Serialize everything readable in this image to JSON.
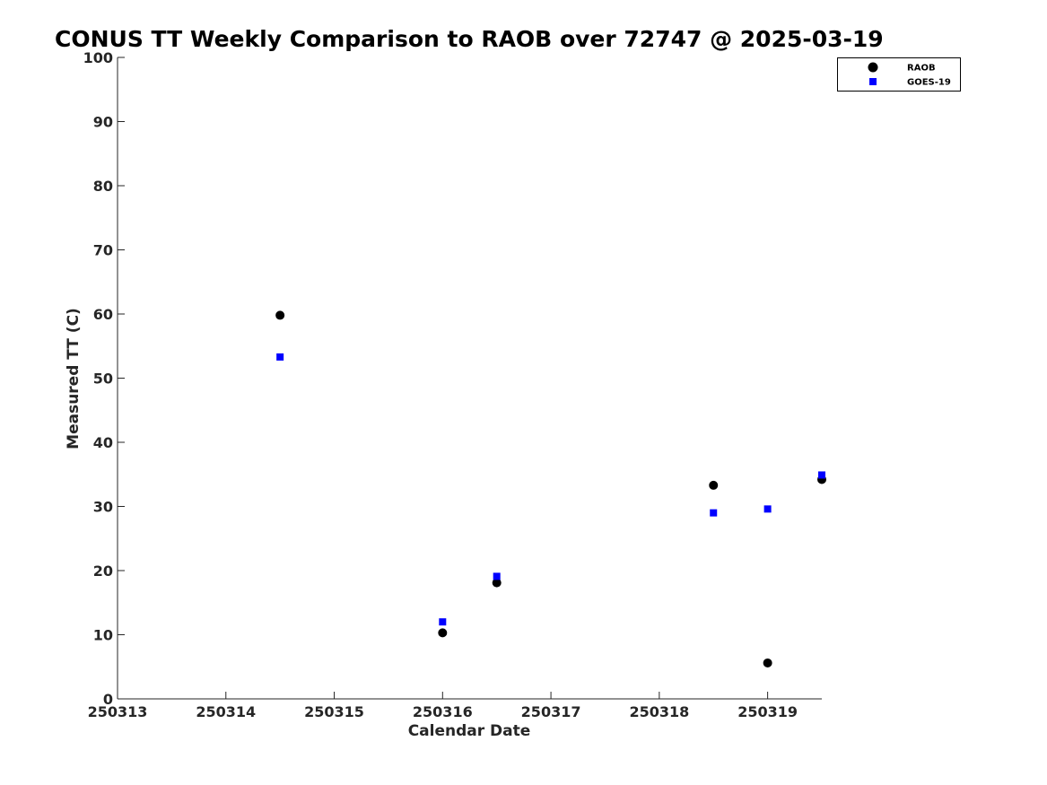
{
  "chart_data": {
    "type": "scatter",
    "title": "CONUS TT Weekly Comparison to RAOB over 72747 @ 2025-03-19",
    "xlabel": "Calendar Date",
    "ylabel": "Measured TT (C)",
    "xlim": [
      250313,
      250319.5
    ],
    "ylim": [
      0,
      100
    ],
    "x_ticks": [
      250313,
      250314,
      250315,
      250316,
      250317,
      250318,
      250319
    ],
    "x_tick_labels": [
      "250313",
      "250314",
      "250315",
      "250316",
      "250317",
      "250318",
      "250319"
    ],
    "y_ticks": [
      0,
      10,
      20,
      30,
      40,
      50,
      60,
      70,
      80,
      90,
      100
    ],
    "y_tick_labels": [
      "0",
      "10",
      "20",
      "30",
      "40",
      "50",
      "60",
      "70",
      "80",
      "90",
      "100"
    ],
    "grid": false,
    "legend_position": "top-right",
    "series": [
      {
        "name": "RAOB",
        "marker": "circle",
        "color": "#000000",
        "x": [
          250314.5,
          250316,
          250316.5,
          250318.5,
          250319,
          250319.5
        ],
        "y": [
          59.8,
          10.3,
          18.1,
          33.3,
          5.6,
          34.2
        ]
      },
      {
        "name": "GOES-19",
        "marker": "square",
        "color": "#0000ff",
        "x": [
          250314.5,
          250316,
          250316.5,
          250318.5,
          250319,
          250319.5
        ],
        "y": [
          53.3,
          12.0,
          19.1,
          29.0,
          29.6,
          34.9
        ]
      }
    ]
  }
}
